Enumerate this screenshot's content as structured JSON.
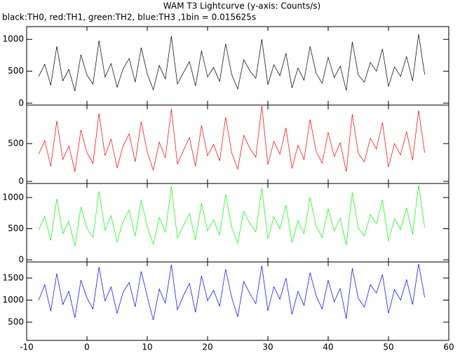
{
  "chart_data": [
    {
      "type": "line",
      "title": "WAM T3 Lightcurve (y-axis: Counts/s)",
      "subtitle": "black:TH0, red:TH1, green:TH2, blue:TH3 ,1bin = 0.015625s",
      "x": [
        -8,
        -7,
        -6,
        -5,
        -4,
        -3,
        -2,
        -1,
        0,
        1,
        2,
        3,
        4,
        5,
        6,
        7,
        8,
        9,
        10,
        11,
        12,
        13,
        14,
        15,
        16,
        17,
        18,
        19,
        20,
        21,
        22,
        23,
        24,
        25,
        26,
        27,
        28,
        29,
        30,
        31,
        32,
        33,
        34,
        35,
        36,
        37,
        38,
        39,
        40,
        41,
        42,
        43,
        44,
        45,
        46,
        47,
        48,
        49,
        50,
        51,
        52,
        53,
        54,
        55,
        56
      ],
      "series": [
        {
          "name": "TH0",
          "color": "#000000",
          "values": [
            420,
            610,
            280,
            890,
            350,
            530,
            190,
            760,
            440,
            300,
            980,
            410,
            620,
            250,
            540,
            700,
            330,
            870,
            460,
            210,
            590,
            380,
            1050,
            300,
            480,
            650,
            270,
            820,
            410,
            560,
            340,
            930,
            450,
            220,
            680,
            510,
            390,
            1000,
            290,
            600,
            430,
            780,
            240,
            550,
            360,
            890,
            470,
            310,
            720,
            400,
            580,
            200,
            960,
            440,
            330,
            640,
            500,
            850,
            260,
            570,
            420,
            730,
            350,
            1080,
            450
          ]
        }
      ],
      "xlim": [
        -10,
        60
      ],
      "ylim": [
        -30,
        1200
      ],
      "yticks": [
        0,
        500,
        1000
      ]
    },
    {
      "type": "line",
      "x": [
        -8,
        -7,
        -6,
        -5,
        -4,
        -3,
        -2,
        -1,
        0,
        1,
        2,
        3,
        4,
        5,
        6,
        7,
        8,
        9,
        10,
        11,
        12,
        13,
        14,
        15,
        16,
        17,
        18,
        19,
        20,
        21,
        22,
        23,
        24,
        25,
        26,
        27,
        28,
        29,
        30,
        31,
        32,
        33,
        34,
        35,
        36,
        37,
        38,
        39,
        40,
        41,
        42,
        43,
        44,
        45,
        46,
        47,
        48,
        49,
        50,
        51,
        52,
        53,
        54,
        55,
        56
      ],
      "series": [
        {
          "name": "TH1",
          "color": "#ff0000",
          "values": [
            360,
            540,
            200,
            800,
            290,
            470,
            130,
            680,
            380,
            240,
            900,
            340,
            560,
            180,
            470,
            630,
            260,
            790,
            390,
            150,
            520,
            310,
            960,
            230,
            410,
            580,
            200,
            740,
            340,
            490,
            270,
            850,
            380,
            160,
            610,
            440,
            320,
            1000,
            220,
            530,
            360,
            710,
            170,
            480,
            290,
            820,
            400,
            240,
            650,
            330,
            510,
            130,
            890,
            370,
            260,
            570,
            430,
            780,
            190,
            500,
            350,
            660,
            280,
            940,
            380
          ]
        }
      ],
      "xlim": [
        -10,
        60
      ],
      "ylim": [
        -28,
        1010
      ],
      "yticks": [
        0,
        500
      ]
    },
    {
      "type": "line",
      "x": [
        -8,
        -7,
        -6,
        -5,
        -4,
        -3,
        -2,
        -1,
        0,
        1,
        2,
        3,
        4,
        5,
        6,
        7,
        8,
        9,
        10,
        11,
        12,
        13,
        14,
        15,
        16,
        17,
        18,
        19,
        20,
        21,
        22,
        23,
        24,
        25,
        26,
        27,
        28,
        29,
        30,
        31,
        32,
        33,
        34,
        35,
        36,
        37,
        38,
        39,
        40,
        41,
        42,
        43,
        44,
        45,
        46,
        47,
        48,
        49,
        50,
        51,
        52,
        53,
        54,
        55,
        56
      ],
      "series": [
        {
          "name": "TH2",
          "color": "#00ff00",
          "values": [
            480,
            700,
            310,
            980,
            420,
            620,
            220,
            850,
            510,
            360,
            1100,
            470,
            710,
            290,
            620,
            800,
            380,
            960,
            530,
            250,
            680,
            440,
            1180,
            350,
            550,
            740,
            320,
            910,
            470,
            640,
            400,
            1050,
            520,
            270,
            780,
            590,
            450,
            1150,
            340,
            690,
            500,
            880,
            280,
            630,
            420,
            1000,
            540,
            360,
            820,
            460,
            670,
            240,
            1080,
            510,
            380,
            730,
            580,
            960,
            300,
            660,
            490,
            830,
            410,
            1200,
            520
          ]
        }
      ],
      "xlim": [
        -10,
        60
      ],
      "ylim": [
        -34,
        1225
      ],
      "yticks": [
        0,
        500,
        1000
      ]
    },
    {
      "type": "line",
      "x": [
        -8,
        -7,
        -6,
        -5,
        -4,
        -3,
        -2,
        -1,
        0,
        1,
        2,
        3,
        4,
        5,
        6,
        7,
        8,
        9,
        10,
        11,
        12,
        13,
        14,
        15,
        16,
        17,
        18,
        19,
        20,
        21,
        22,
        23,
        24,
        25,
        26,
        27,
        28,
        29,
        30,
        31,
        32,
        33,
        34,
        35,
        36,
        37,
        38,
        39,
        40,
        41,
        42,
        43,
        44,
        45,
        46,
        47,
        48,
        49,
        50,
        51,
        52,
        53,
        54,
        55,
        56
      ],
      "series": [
        {
          "name": "TH3",
          "color": "#0000ff",
          "values": [
            1000,
            1350,
            750,
            1600,
            900,
            1200,
            600,
            1450,
            1050,
            800,
            1750,
            980,
            1300,
            700,
            1180,
            1400,
            850,
            1650,
            1080,
            550,
            1250,
            930,
            1800,
            780,
            1100,
            1380,
            720,
            1550,
            990,
            1220,
            860,
            1700,
            1060,
            620,
            1420,
            1150,
            920,
            1780,
            760,
            1300,
            1020,
            1500,
            680,
            1200,
            880,
            1620,
            1100,
            800,
            1450,
            960,
            1260,
            580,
            1720,
            1040,
            840,
            1350,
            1160,
            1580,
            700,
            1240,
            1000,
            1460,
            900,
            1820,
            1060
          ]
        }
      ],
      "xlim": [
        -10,
        60
      ],
      "ylim": [
        87,
        1865
      ],
      "yticks": [
        500,
        1000,
        1500
      ],
      "xticks": [
        -10,
        0,
        10,
        20,
        30,
        40,
        50,
        60
      ]
    }
  ]
}
